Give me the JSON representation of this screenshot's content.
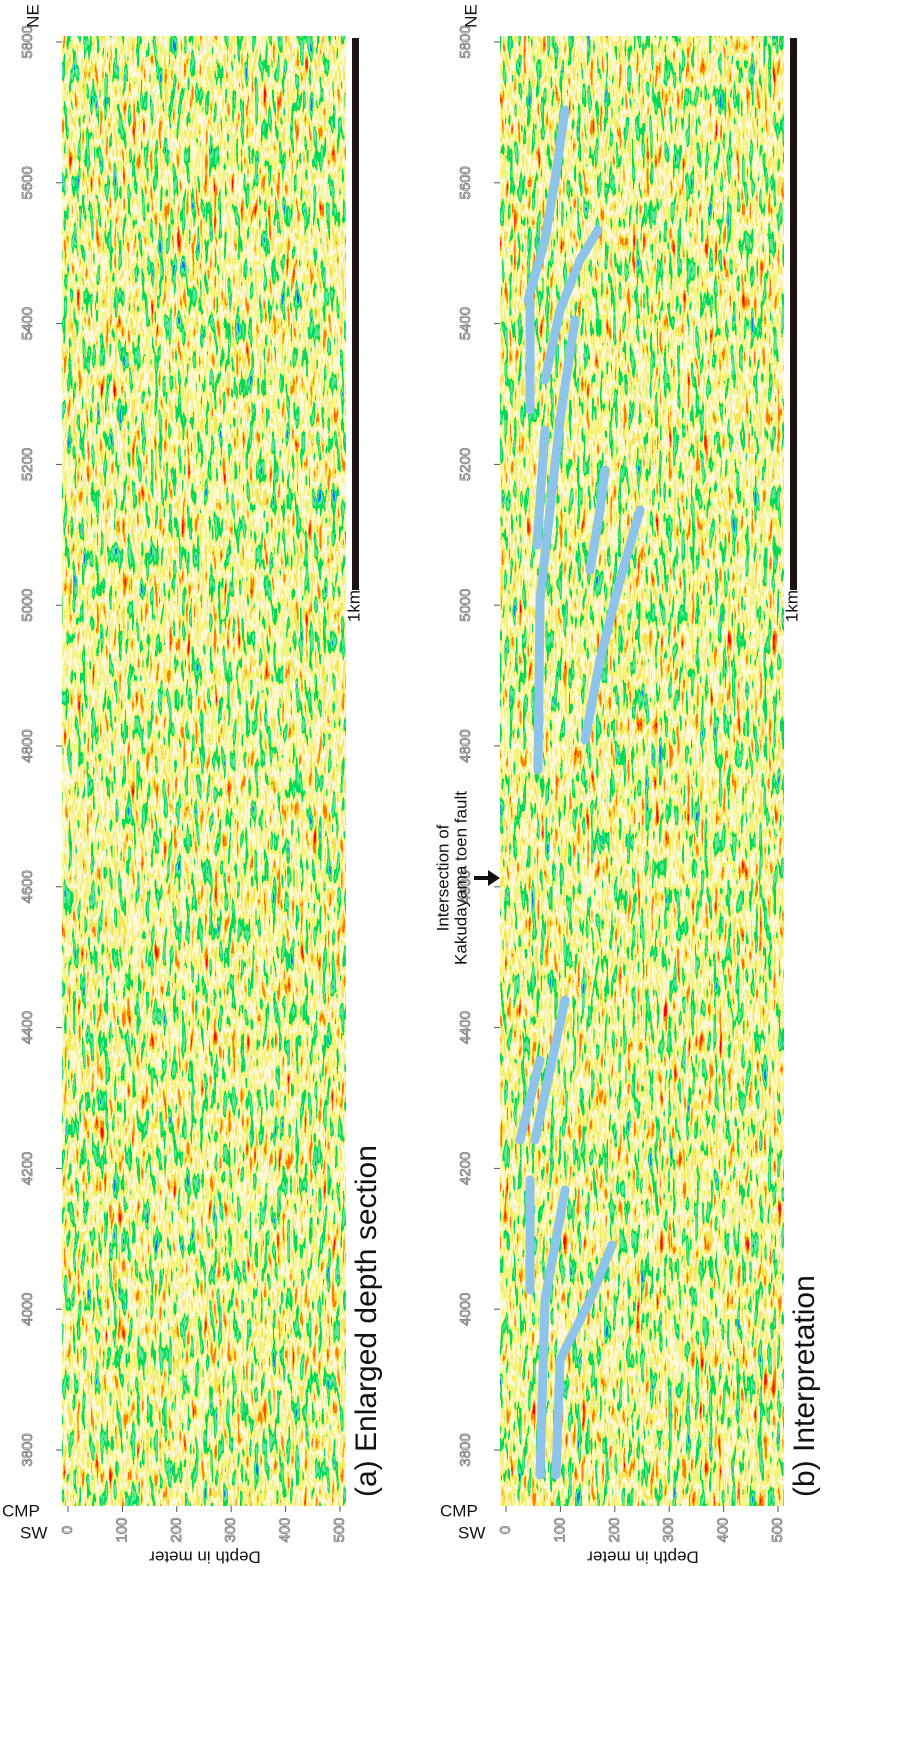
{
  "axes": {
    "cmp_label": "CMP",
    "sw": "SW",
    "ne": "NE",
    "depth_label": "Depth in meter",
    "scale_label": "1km",
    "cmp_ticks": [
      3800,
      4000,
      4200,
      4400,
      4600,
      4800,
      5000,
      5200,
      5400,
      5600,
      5800
    ],
    "depth_ticks": [
      0,
      100,
      200,
      300,
      400,
      500
    ]
  },
  "panels": [
    {
      "title": "(a) Enlarged depth section"
    },
    {
      "title": "(b) Interpretation",
      "annotation": [
        "Intersection of",
        "Kakudayama toen fault"
      ]
    }
  ]
}
